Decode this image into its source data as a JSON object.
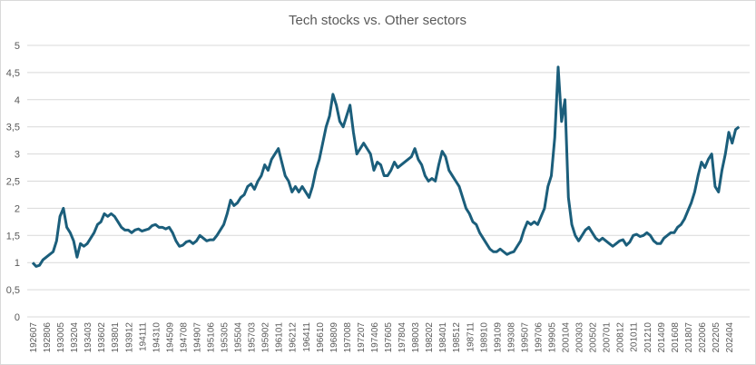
{
  "chart_data": {
    "type": "line",
    "title": "Tech stocks vs. Other sectors",
    "categories": [
      "192607",
      null,
      null,
      null,
      "192806",
      null,
      null,
      null,
      "193005",
      null,
      null,
      null,
      "193204",
      null,
      null,
      null,
      "193403",
      null,
      null,
      null,
      "193602",
      null,
      null,
      null,
      "193801",
      null,
      null,
      null,
      "193912",
      null,
      null,
      null,
      "194111",
      null,
      null,
      null,
      "194310",
      null,
      null,
      null,
      "194509",
      null,
      null,
      null,
      "194708",
      null,
      null,
      null,
      "194907",
      null,
      null,
      null,
      "195106",
      null,
      null,
      null,
      "195305",
      null,
      null,
      null,
      "195504",
      null,
      null,
      null,
      "195703",
      null,
      null,
      null,
      "195902",
      null,
      null,
      null,
      "196101",
      null,
      null,
      null,
      "196212",
      null,
      null,
      null,
      "196411",
      null,
      null,
      null,
      "196610",
      null,
      null,
      null,
      "196809",
      null,
      null,
      null,
      "197008",
      null,
      null,
      null,
      "197207",
      null,
      null,
      null,
      "197406",
      null,
      null,
      null,
      "197605",
      null,
      null,
      null,
      "197804",
      null,
      null,
      null,
      "198003",
      null,
      null,
      null,
      "198202",
      null,
      null,
      null,
      "198401",
      null,
      null,
      null,
      "198512",
      null,
      null,
      null,
      "198711",
      null,
      null,
      null,
      "198910",
      null,
      null,
      null,
      "199109",
      null,
      null,
      null,
      "199308",
      null,
      null,
      null,
      "199507",
      null,
      null,
      null,
      "199706",
      null,
      null,
      null,
      "199905",
      null,
      null,
      null,
      "200104",
      null,
      null,
      null,
      "200303",
      null,
      null,
      null,
      "200502",
      null,
      null,
      null,
      "200701",
      null,
      null,
      null,
      "200812",
      null,
      null,
      null,
      "201011",
      null,
      null,
      null,
      "201210",
      null,
      null,
      null,
      "201409",
      null,
      null,
      null,
      "201608",
      null,
      null,
      null,
      "201807",
      null,
      null,
      null,
      "202006",
      null,
      null,
      null,
      "202205",
      null,
      null,
      null,
      "202404",
      null,
      null,
      null
    ],
    "series": [
      {
        "color": "#1b5e7b",
        "values": [
          1.0,
          0.93,
          0.95,
          1.05,
          1.1,
          1.15,
          1.2,
          1.4,
          1.85,
          2.0,
          1.65,
          1.55,
          1.4,
          1.1,
          1.35,
          1.3,
          1.35,
          1.45,
          1.55,
          1.7,
          1.75,
          1.9,
          1.85,
          1.9,
          1.85,
          1.75,
          1.65,
          1.6,
          1.6,
          1.55,
          1.6,
          1.62,
          1.58,
          1.6,
          1.62,
          1.68,
          1.7,
          1.65,
          1.65,
          1.62,
          1.65,
          1.55,
          1.4,
          1.3,
          1.32,
          1.38,
          1.4,
          1.35,
          1.4,
          1.5,
          1.45,
          1.4,
          1.42,
          1.42,
          1.5,
          1.6,
          1.7,
          1.9,
          2.15,
          2.05,
          2.1,
          2.2,
          2.25,
          2.4,
          2.45,
          2.35,
          2.5,
          2.6,
          2.8,
          2.7,
          2.9,
          3.0,
          3.1,
          2.85,
          2.6,
          2.5,
          2.3,
          2.4,
          2.3,
          2.4,
          2.3,
          2.2,
          2.4,
          2.7,
          2.9,
          3.2,
          3.5,
          3.7,
          4.1,
          3.9,
          3.6,
          3.5,
          3.7,
          3.9,
          3.4,
          3.0,
          3.1,
          3.2,
          3.1,
          3.0,
          2.7,
          2.85,
          2.8,
          2.6,
          2.6,
          2.7,
          2.85,
          2.75,
          2.8,
          2.85,
          2.9,
          2.95,
          3.1,
          2.9,
          2.8,
          2.6,
          2.5,
          2.55,
          2.5,
          2.8,
          3.05,
          2.95,
          2.7,
          2.6,
          2.5,
          2.4,
          2.2,
          2.0,
          1.9,
          1.75,
          1.7,
          1.55,
          1.45,
          1.35,
          1.25,
          1.2,
          1.2,
          1.25,
          1.2,
          1.15,
          1.18,
          1.2,
          1.3,
          1.4,
          1.6,
          1.75,
          1.7,
          1.75,
          1.7,
          1.85,
          2.0,
          2.4,
          2.6,
          3.3,
          4.6,
          3.6,
          4.0,
          2.2,
          1.7,
          1.5,
          1.4,
          1.5,
          1.6,
          1.65,
          1.55,
          1.45,
          1.4,
          1.45,
          1.4,
          1.35,
          1.3,
          1.35,
          1.4,
          1.42,
          1.32,
          1.38,
          1.5,
          1.52,
          1.48,
          1.5,
          1.55,
          1.5,
          1.4,
          1.35,
          1.35,
          1.45,
          1.5,
          1.55,
          1.55,
          1.65,
          1.7,
          1.8,
          1.95,
          2.1,
          2.3,
          2.6,
          2.85,
          2.75,
          2.9,
          3.0,
          2.4,
          2.3,
          2.7,
          3.0,
          3.4,
          3.2,
          3.45,
          3.5
        ]
      }
    ],
    "ylim": [
      0,
      5
    ],
    "yticks": [
      0,
      {
        "value": 0.5,
        "label": "0,5"
      },
      1,
      {
        "value": 1.5,
        "label": "1,5"
      },
      2,
      {
        "value": 2.5,
        "label": "2,5"
      },
      3,
      {
        "value": 3.5,
        "label": "3,5"
      },
      4,
      {
        "value": 4.5,
        "label": "4,5"
      },
      5
    ],
    "grid": true
  }
}
